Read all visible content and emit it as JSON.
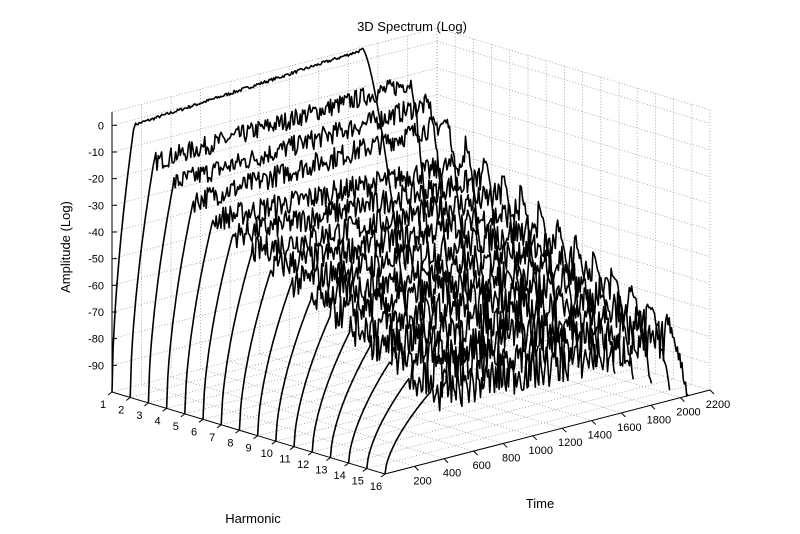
{
  "chart_data": {
    "type": "line",
    "title": "3D Spectrum (Log)",
    "xlabel": "Time",
    "ylabel": "Harmonic",
    "zlabel": "Amplitude (Log)",
    "x_ticks": [
      200,
      400,
      600,
      800,
      1000,
      1200,
      1400,
      1600,
      1800,
      2000,
      2200
    ],
    "y_ticks": [
      1,
      2,
      3,
      4,
      5,
      6,
      7,
      8,
      9,
      10,
      11,
      12,
      13,
      14,
      15,
      16
    ],
    "z_ticks": [
      0,
      -10,
      -20,
      -30,
      -40,
      -50,
      -60,
      -70,
      -80,
      -90
    ],
    "xlim": [
      0,
      2200
    ],
    "ylim": [
      1,
      16
    ],
    "zlim": [
      -100,
      5
    ],
    "grid": true,
    "series": [
      {
        "harmonic": 1,
        "attack_end": 150,
        "plateau": [
          -2,
          4
        ],
        "release": [
          1700,
          1990
        ],
        "floor": -100
      },
      {
        "harmonic": 2,
        "attack_end": 160,
        "plateau": [
          -14,
          -9
        ],
        "release": [
          1900,
          2050
        ],
        "floor": -100
      },
      {
        "harmonic": 3,
        "attack_end": 170,
        "plateau": [
          -20,
          -15
        ],
        "release": [
          1900,
          2050
        ],
        "floor": -100
      },
      {
        "harmonic": 4,
        "attack_end": 180,
        "plateau": [
          -25,
          -20
        ],
        "release": [
          1900,
          2050
        ],
        "floor": -100
      },
      {
        "harmonic": 5,
        "attack_end": 190,
        "plateau": [
          -30,
          -25
        ],
        "release": [
          1900,
          2050
        ],
        "floor": -100
      },
      {
        "harmonic": 6,
        "attack_end": 200,
        "plateau": [
          -34,
          -29
        ],
        "release": [
          1900,
          2050
        ],
        "floor": -100
      },
      {
        "harmonic": 7,
        "attack_end": 210,
        "plateau": [
          -38,
          -33
        ],
        "release": [
          1900,
          2050
        ],
        "floor": -100
      },
      {
        "harmonic": 8,
        "attack_end": 220,
        "plateau": [
          -42,
          -37
        ],
        "release": [
          1900,
          2050
        ],
        "floor": -100
      },
      {
        "harmonic": 9,
        "attack_end": 230,
        "plateau": [
          -46,
          -41
        ],
        "release": [
          1900,
          2050
        ],
        "floor": -100
      },
      {
        "harmonic": 10,
        "attack_end": 240,
        "plateau": [
          -50,
          -45
        ],
        "release": [
          1900,
          2050
        ],
        "floor": -100
      },
      {
        "harmonic": 11,
        "attack_end": 250,
        "plateau": [
          -54,
          -49
        ],
        "release": [
          1900,
          2050
        ],
        "floor": -100
      },
      {
        "harmonic": 12,
        "attack_end": 260,
        "plateau": [
          -58,
          -53
        ],
        "release": [
          1900,
          2050
        ],
        "floor": -100
      },
      {
        "harmonic": 13,
        "attack_end": 270,
        "plateau": [
          -62,
          -57
        ],
        "release": [
          1900,
          2050
        ],
        "floor": -100
      },
      {
        "harmonic": 14,
        "attack_end": 280,
        "plateau": [
          -66,
          -61
        ],
        "release": [
          1900,
          2050
        ],
        "floor": -100
      },
      {
        "harmonic": 15,
        "attack_end": 290,
        "plateau": [
          -70,
          -65
        ],
        "release": [
          1900,
          2050
        ],
        "floor": -100
      },
      {
        "harmonic": 16,
        "attack_end": 300,
        "plateau": [
          -74,
          -69
        ],
        "release": [
          1900,
          2050
        ],
        "floor": -100
      }
    ]
  }
}
